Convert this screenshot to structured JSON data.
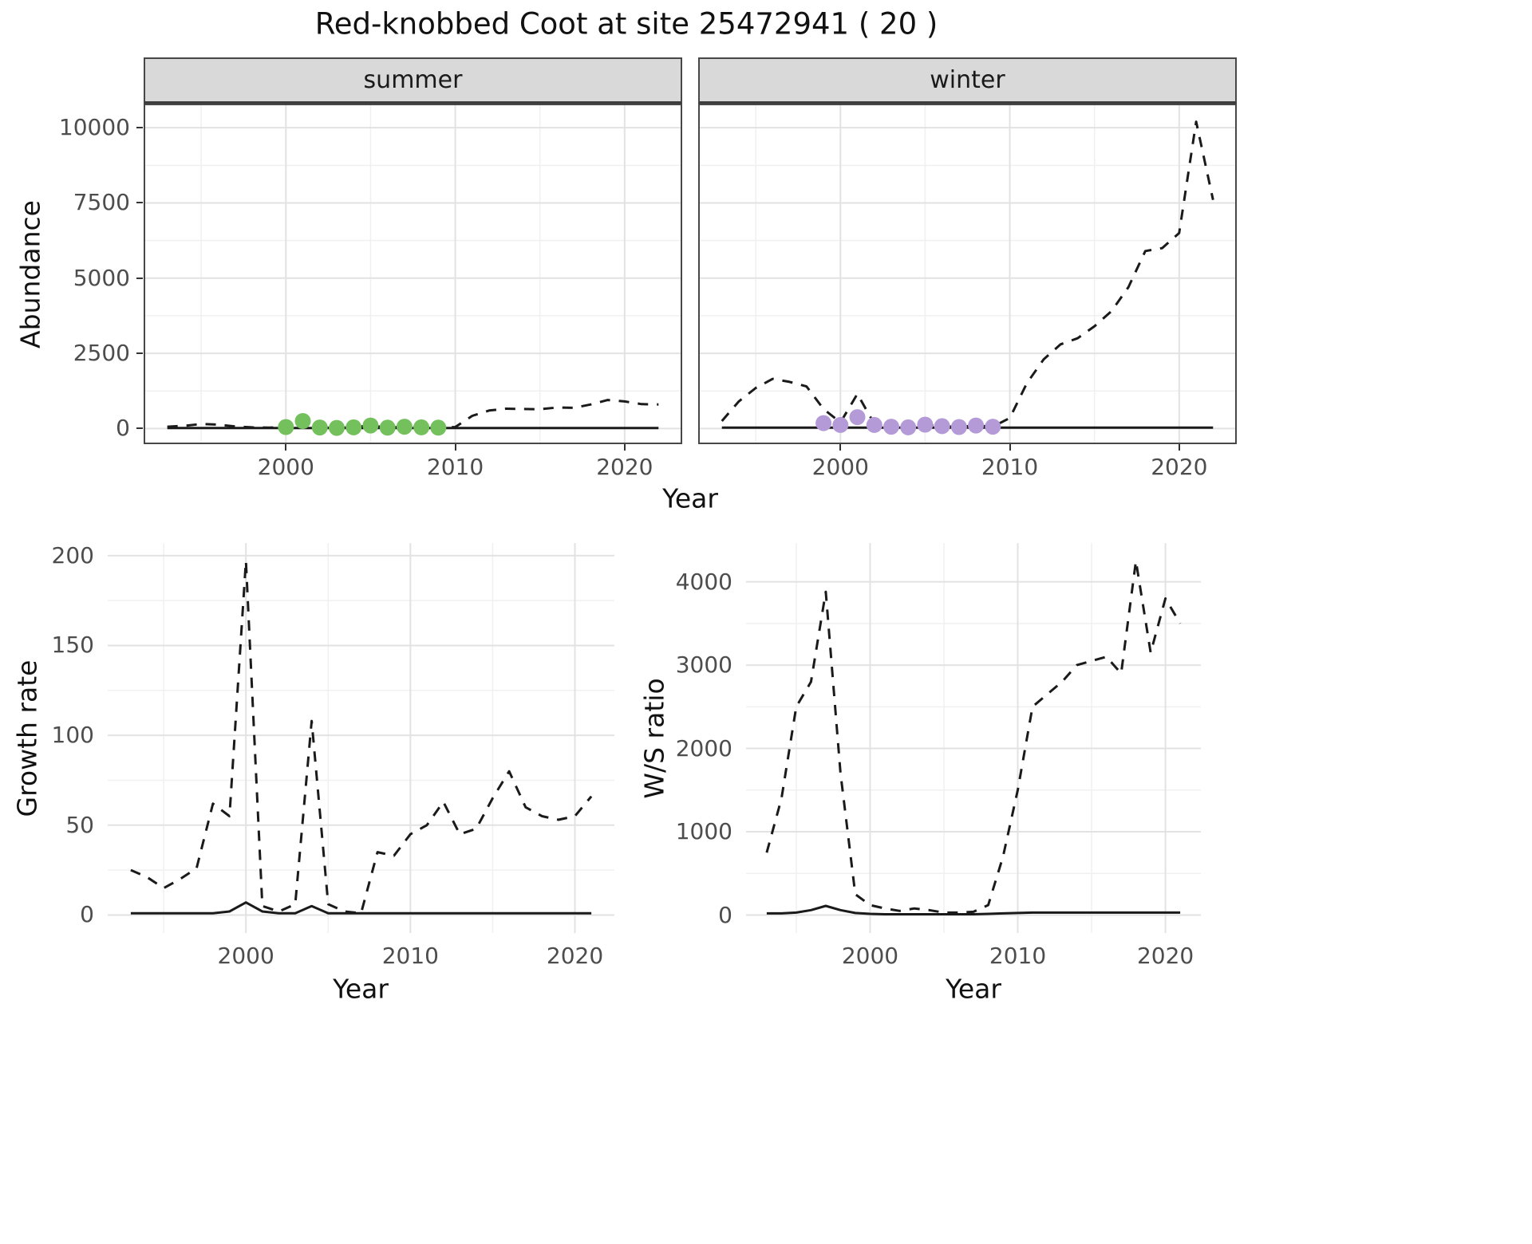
{
  "title": "Red-knobbed Coot at site 25472941 ( 20 )",
  "theme": {
    "background": "#ffffff",
    "strip_background": "#d9d9d9",
    "panel_border": "#474747",
    "grid_major": "#e2e2e2",
    "grid_minor": "#f0f0f0",
    "line_color": "#1a1a1a",
    "summer_point_color": "#74c05c",
    "winter_point_color": "#b49bd8",
    "tick_label_color": "#4d4d4d"
  },
  "chart_data": [
    {
      "id": "abundance_summer",
      "type": "line",
      "facet": "summer",
      "xlabel": "Year",
      "ylabel": "Abundance",
      "xlim": [
        1991.6,
        2023.4
      ],
      "ylim": [
        -520,
        10800
      ],
      "x_ticks": [
        2000,
        2010,
        2020
      ],
      "y_ticks": [
        0,
        2500,
        5000,
        7500,
        10000
      ],
      "grid": true,
      "series": [
        {
          "name": "dashed",
          "linetype": "dashed",
          "color": "#1a1a1a",
          "x": [
            1993,
            1994,
            1995,
            1996,
            1997,
            1998,
            1999,
            2000,
            2001,
            2002,
            2003,
            2004,
            2005,
            2006,
            2007,
            2008,
            2009,
            2010,
            2011,
            2012,
            2013,
            2014,
            2015,
            2016,
            2017,
            2018,
            2019,
            2020,
            2021,
            2022
          ],
          "y": [
            60,
            90,
            150,
            130,
            70,
            40,
            30,
            50,
            250,
            35,
            20,
            40,
            100,
            30,
            60,
            40,
            30,
            50,
            420,
            600,
            660,
            650,
            640,
            700,
            690,
            800,
            950,
            900,
            810,
            800
          ]
        },
        {
          "name": "solid",
          "linetype": "solid",
          "color": "#1a1a1a",
          "x": [
            1993,
            1994,
            1995,
            1996,
            1997,
            1998,
            1999,
            2000,
            2001,
            2002,
            2003,
            2004,
            2005,
            2006,
            2007,
            2008,
            2009,
            2010,
            2011,
            2012,
            2013,
            2014,
            2015,
            2016,
            2017,
            2018,
            2019,
            2020,
            2021,
            2022
          ],
          "y": [
            18,
            18,
            18,
            18,
            18,
            18,
            18,
            18,
            18,
            18,
            18,
            18,
            18,
            18,
            18,
            18,
            18,
            18,
            18,
            18,
            18,
            18,
            18,
            18,
            18,
            18,
            18,
            18,
            18,
            18
          ]
        }
      ],
      "points": [
        {
          "name": "highlight-summer",
          "color": "#74c05c",
          "x": [
            2000,
            2001,
            2002,
            2003,
            2004,
            2005,
            2006,
            2007,
            2008,
            2009
          ],
          "y": [
            50,
            250,
            35,
            20,
            40,
            100,
            30,
            60,
            40,
            30
          ]
        }
      ]
    },
    {
      "id": "abundance_winter",
      "type": "line",
      "facet": "winter",
      "xlabel": "Year",
      "ylabel": "Abundance",
      "xlim": [
        1991.6,
        2023.4
      ],
      "ylim": [
        -520,
        10800
      ],
      "x_ticks": [
        2000,
        2010,
        2020
      ],
      "y_ticks": [
        0,
        2500,
        5000,
        7500,
        10000
      ],
      "grid": true,
      "series": [
        {
          "name": "dashed",
          "linetype": "dashed",
          "color": "#1a1a1a",
          "x": [
            1993,
            1994,
            1995,
            1996,
            1997,
            1998,
            1999,
            2000,
            2001,
            2002,
            2003,
            2004,
            2005,
            2006,
            2007,
            2008,
            2009,
            2010,
            2011,
            2012,
            2013,
            2014,
            2015,
            2016,
            2017,
            2018,
            2019,
            2020,
            2021,
            2022
          ],
          "y": [
            250,
            900,
            1350,
            1650,
            1550,
            1400,
            650,
            200,
            1150,
            150,
            70,
            50,
            130,
            80,
            50,
            100,
            60,
            350,
            1500,
            2300,
            2800,
            3000,
            3400,
            3900,
            4700,
            5900,
            6000,
            6500,
            10200,
            7600
          ]
        },
        {
          "name": "solid",
          "linetype": "solid",
          "color": "#1a1a1a",
          "x": [
            1993,
            1994,
            1995,
            1996,
            1997,
            1998,
            1999,
            2000,
            2001,
            2002,
            2003,
            2004,
            2005,
            2006,
            2007,
            2008,
            2009,
            2010,
            2011,
            2012,
            2013,
            2014,
            2015,
            2016,
            2017,
            2018,
            2019,
            2020,
            2021,
            2022
          ],
          "y": [
            30,
            30,
            30,
            30,
            30,
            30,
            30,
            30,
            30,
            30,
            30,
            30,
            30,
            30,
            30,
            30,
            30,
            30,
            30,
            30,
            30,
            30,
            30,
            30,
            30,
            30,
            30,
            30,
            30,
            30
          ]
        }
      ],
      "points": [
        {
          "name": "highlight-winter",
          "color": "#b49bd8",
          "x": [
            1999,
            2000,
            2001,
            2002,
            2003,
            2004,
            2005,
            2006,
            2007,
            2008,
            2009
          ],
          "y": [
            180,
            120,
            380,
            120,
            60,
            40,
            130,
            80,
            50,
            100,
            60
          ]
        }
      ]
    },
    {
      "id": "growth_rate",
      "type": "line",
      "facet": null,
      "xlabel": "Year",
      "ylabel": "Growth rate",
      "xlim": [
        1991.6,
        2022.4
      ],
      "ylim": [
        -10,
        207
      ],
      "x_ticks": [
        2000,
        2010,
        2020
      ],
      "y_ticks": [
        0,
        50,
        100,
        150,
        200
      ],
      "grid": true,
      "series": [
        {
          "name": "dashed",
          "linetype": "dashed",
          "color": "#1a1a1a",
          "x": [
            1993,
            1994,
            1995,
            1996,
            1997,
            1998,
            1999,
            2000,
            2001,
            2002,
            2003,
            2004,
            2005,
            2006,
            2007,
            2008,
            2009,
            2010,
            2011,
            2012,
            2013,
            2014,
            2015,
            2016,
            2017,
            2018,
            2019,
            2020,
            2021
          ],
          "y": [
            25,
            21,
            15,
            20,
            26,
            62,
            55,
            197,
            5,
            2,
            6,
            108,
            6,
            2,
            1,
            35,
            33,
            45,
            50,
            63,
            45,
            48,
            65,
            80,
            60,
            55,
            53,
            55,
            66
          ]
        },
        {
          "name": "solid",
          "linetype": "solid",
          "color": "#1a1a1a",
          "x": [
            1993,
            1994,
            1995,
            1996,
            1997,
            1998,
            1999,
            2000,
            2001,
            2002,
            2003,
            2004,
            2005,
            2006,
            2007,
            2008,
            2009,
            2010,
            2011,
            2012,
            2013,
            2014,
            2015,
            2016,
            2017,
            2018,
            2019,
            2020,
            2021
          ],
          "y": [
            1,
            1,
            1,
            1,
            1,
            1,
            2,
            7,
            2,
            1,
            1,
            5,
            1,
            1,
            1,
            1,
            1,
            1,
            1,
            1,
            1,
            1,
            1,
            1,
            1,
            1,
            1,
            1,
            1
          ]
        }
      ],
      "points": []
    },
    {
      "id": "ws_ratio",
      "type": "line",
      "facet": null,
      "xlabel": "Year",
      "ylabel": "W/S ratio",
      "xlim": [
        1991.6,
        2022.4
      ],
      "ylim": [
        -215,
        4465
      ],
      "x_ticks": [
        2000,
        2010,
        2020
      ],
      "y_ticks": [
        0,
        1000,
        2000,
        3000,
        4000
      ],
      "grid": true,
      "series": [
        {
          "name": "dashed",
          "linetype": "dashed",
          "color": "#1a1a1a",
          "x": [
            1993,
            1994,
            1995,
            1996,
            1997,
            1998,
            1999,
            2000,
            2001,
            2002,
            2003,
            2004,
            2005,
            2006,
            2007,
            2008,
            2009,
            2010,
            2011,
            2012,
            2013,
            2014,
            2015,
            2016,
            2017,
            2018,
            2019,
            2020,
            2021
          ],
          "y": [
            750,
            1400,
            2500,
            2800,
            3880,
            1700,
            250,
            120,
            80,
            50,
            80,
            60,
            30,
            30,
            40,
            120,
            700,
            1500,
            2500,
            2650,
            2800,
            3000,
            3050,
            3100,
            2900,
            4250,
            3150,
            3800,
            3500
          ]
        },
        {
          "name": "solid",
          "linetype": "solid",
          "color": "#1a1a1a",
          "x": [
            1993,
            1994,
            1995,
            1996,
            1997,
            1998,
            1999,
            2000,
            2001,
            2002,
            2003,
            2004,
            2005,
            2006,
            2007,
            2008,
            2009,
            2010,
            2011,
            2012,
            2013,
            2014,
            2015,
            2016,
            2017,
            2018,
            2019,
            2020,
            2021
          ],
          "y": [
            20,
            20,
            30,
            60,
            110,
            60,
            25,
            15,
            10,
            10,
            10,
            10,
            10,
            10,
            10,
            15,
            20,
            25,
            30,
            30,
            30,
            30,
            30,
            30,
            30,
            30,
            30,
            30,
            30
          ]
        }
      ],
      "points": []
    }
  ]
}
